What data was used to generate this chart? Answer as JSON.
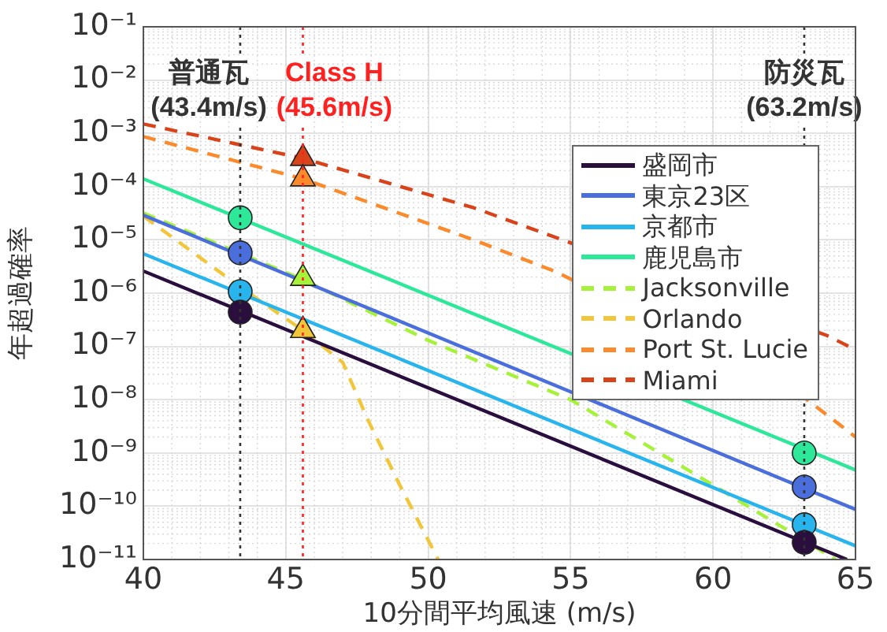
{
  "chart_data": {
    "type": "line",
    "xlabel": "10分間平均風速 (m/s)",
    "ylabel": "年超過確率",
    "log": "y",
    "grid": true,
    "legend": "right",
    "xlim": [
      40,
      65
    ],
    "xticks": [
      40,
      45,
      50,
      55,
      60,
      65
    ],
    "ylim": [
      1e-11,
      0.1
    ],
    "yticks": [
      {
        "value": 1e-11,
        "label": "10⁻¹¹"
      },
      {
        "value": 1e-10,
        "label": "10⁻¹⁰"
      },
      {
        "value": 1e-09,
        "label": "10⁻⁹"
      },
      {
        "value": 1e-08,
        "label": "10⁻⁸"
      },
      {
        "value": 1e-07,
        "label": "10⁻⁷"
      },
      {
        "value": 1e-06,
        "label": "10⁻⁶"
      },
      {
        "value": 1e-05,
        "label": "10⁻⁵"
      },
      {
        "value": 0.0001,
        "label": "10⁻⁴"
      },
      {
        "value": 0.001,
        "label": "10⁻³"
      },
      {
        "value": 0.01,
        "label": "10⁻²"
      },
      {
        "value": 0.1,
        "label": "10⁻¹"
      }
    ],
    "ref_lines": [
      {
        "axis": "x",
        "value": 43.4,
        "label": "普通瓦\n(43.4m/s)",
        "color": "#333333",
        "line_style": "dotted"
      },
      {
        "axis": "x",
        "value": 45.6,
        "label": "Class H\n(45.6m/s)",
        "color": "#ff2020",
        "line_style": "dotted"
      },
      {
        "axis": "x",
        "value": 63.2,
        "label": "防災瓦\n(63.2m/s)",
        "color": "#333333",
        "line_style": "dotted"
      }
    ],
    "series": [
      {
        "name": "盛岡市",
        "color": "#2a0f3e",
        "line_style": "solid",
        "x": [
          40,
          64.7
        ],
        "values": [
          2.6e-06,
          1e-11
        ]
      },
      {
        "name": "東京23区",
        "color": "#4a6fdc",
        "line_style": "solid",
        "x": [
          40,
          65
        ],
        "values": [
          2.9e-05,
          8.7e-11
        ]
      },
      {
        "name": "京都市",
        "color": "#28b4ec",
        "line_style": "solid",
        "x": [
          40,
          65
        ],
        "values": [
          5.5e-06,
          1.8e-11
        ]
      },
      {
        "name": "鹿児島市",
        "color": "#2ee89a",
        "line_style": "solid",
        "x": [
          40,
          65
        ],
        "values": [
          0.00014,
          4.8e-10
        ]
      },
      {
        "name": "Jacksonville",
        "color": "#a6f23a",
        "line_style": "dashed",
        "x": [
          40,
          45.6,
          50,
          55,
          60,
          64.3
        ],
        "values": [
          3.2e-05,
          1.8e-06,
          1.3e-07,
          1e-08,
          2.5e-10,
          1e-11
        ]
      },
      {
        "name": "Orlando",
        "color": "#f2c63a",
        "line_style": "dashed",
        "x": [
          40,
          43.4,
          45.6,
          47,
          47.9,
          49,
          50.35
        ],
        "values": [
          2.8e-05,
          1.3e-06,
          2e-07,
          5e-08,
          4e-09,
          2.5e-10,
          1e-11
        ]
      },
      {
        "name": "Port St. Lucie",
        "color": "#fb8a2c",
        "line_style": "dashed",
        "x": [
          40,
          45.6,
          51.6,
          54.5,
          63.2,
          65
        ],
        "values": [
          0.00087,
          0.00014,
          1e-05,
          2.5e-06,
          1.1e-08,
          2e-09
        ]
      },
      {
        "name": "Miami",
        "color": "#d8431a",
        "line_style": "dashed",
        "x": [
          40,
          45.6,
          51.6,
          64,
          65
        ],
        "values": [
          0.0015,
          0.00034,
          4e-05,
          1.6e-07,
          8.7e-08
        ]
      },
      {
        "type": "scatter",
        "marker": "circle",
        "color": "#2a0f3e",
        "x": [
          43.4,
          63.2
        ],
        "values": [
          4.4e-07,
          2.1e-11
        ]
      },
      {
        "type": "scatter",
        "marker": "circle",
        "color": "#4a6fdc",
        "x": [
          43.4,
          63.2
        ],
        "values": [
          5.7e-06,
          2.3e-10
        ]
      },
      {
        "type": "scatter",
        "marker": "circle",
        "color": "#28b4ec",
        "x": [
          43.4,
          63.2
        ],
        "values": [
          1.07e-06,
          4.5e-11
        ]
      },
      {
        "type": "scatter",
        "marker": "circle",
        "color": "#2ee89a",
        "x": [
          43.4,
          63.2
        ],
        "values": [
          2.6e-05,
          1e-09
        ]
      },
      {
        "type": "scatter",
        "marker": "triangle",
        "color": "#a6f23a",
        "x": [
          45.6
        ],
        "values": [
          1.9e-06
        ]
      },
      {
        "type": "scatter",
        "marker": "triangle",
        "color": "#f2c63a",
        "x": [
          45.6
        ],
        "values": [
          2e-07
        ]
      },
      {
        "type": "scatter",
        "marker": "triangle",
        "color": "#fb8a2c",
        "x": [
          45.6
        ],
        "values": [
          0.00014
        ]
      },
      {
        "type": "scatter",
        "marker": "triangle",
        "color": "#d8431a",
        "x": [
          45.6
        ],
        "values": [
          0.00034
        ]
      }
    ]
  }
}
